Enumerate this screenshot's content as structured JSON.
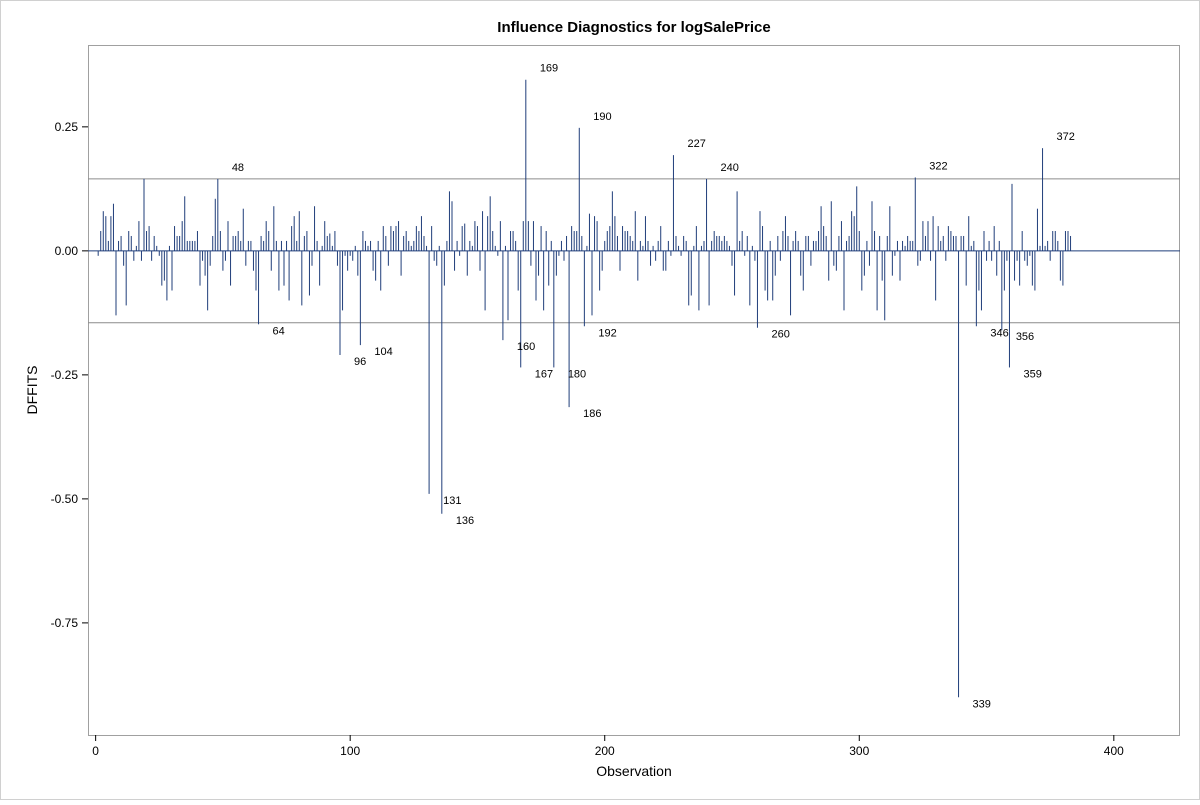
{
  "chart_data": {
    "type": "needle",
    "title": "Influence Diagnostics for logSalePrice",
    "xlabel": "Observation",
    "ylabel": "DFFITS",
    "color": "#1f3d7a",
    "xlim": [
      -3,
      426
    ],
    "ylim": [
      -0.976,
      0.415
    ],
    "xticks": [
      0,
      100,
      200,
      300,
      400
    ],
    "yticks": [
      0.25,
      {
        "value": 0,
        "label": "0.00"
      },
      -0.25,
      {
        "value": -0.5,
        "label": "-0.50"
      },
      -0.75
    ],
    "reflines": [
      0.145,
      -0.145
    ],
    "x": [
      1,
      2,
      3,
      4,
      5,
      6,
      7,
      8,
      9,
      10,
      11,
      12,
      13,
      14,
      15,
      16,
      17,
      18,
      19,
      20,
      21,
      22,
      23,
      24,
      25,
      26,
      27,
      28,
      29,
      30,
      31,
      32,
      33,
      34,
      35,
      36,
      37,
      38,
      39,
      40,
      41,
      42,
      43,
      44,
      45,
      46,
      47,
      48,
      49,
      50,
      51,
      52,
      53,
      54,
      55,
      56,
      57,
      58,
      59,
      60,
      61,
      62,
      63,
      64,
      65,
      66,
      67,
      68,
      69,
      70,
      71,
      72,
      73,
      74,
      75,
      76,
      77,
      78,
      79,
      80,
      81,
      82,
      83,
      84,
      85,
      86,
      87,
      88,
      89,
      90,
      91,
      92,
      93,
      94,
      95,
      96,
      97,
      98,
      99,
      100,
      101,
      102,
      103,
      104,
      105,
      106,
      107,
      108,
      109,
      110,
      111,
      112,
      113,
      114,
      115,
      116,
      117,
      118,
      119,
      120,
      121,
      122,
      123,
      124,
      125,
      126,
      127,
      128,
      129,
      130,
      131,
      132,
      133,
      134,
      135,
      136,
      137,
      138,
      139,
      140,
      141,
      142,
      143,
      144,
      145,
      146,
      147,
      148,
      149,
      150,
      151,
      152,
      153,
      154,
      155,
      156,
      157,
      158,
      159,
      160,
      161,
      162,
      163,
      164,
      165,
      166,
      167,
      168,
      169,
      170,
      171,
      172,
      173,
      174,
      175,
      176,
      177,
      178,
      179,
      180,
      181,
      182,
      183,
      184,
      185,
      186,
      187,
      188,
      189,
      190,
      191,
      192,
      193,
      194,
      195,
      196,
      197,
      198,
      199,
      200,
      201,
      202,
      203,
      204,
      205,
      206,
      207,
      208,
      209,
      210,
      211,
      212,
      213,
      214,
      215,
      216,
      217,
      218,
      219,
      220,
      221,
      222,
      223,
      224,
      225,
      226,
      227,
      228,
      229,
      230,
      231,
      232,
      233,
      234,
      235,
      236,
      237,
      238,
      239,
      240,
      241,
      242,
      243,
      244,
      245,
      246,
      247,
      248,
      249,
      250,
      251,
      252,
      253,
      254,
      255,
      256,
      257,
      258,
      259,
      260,
      261,
      262,
      263,
      264,
      265,
      266,
      267,
      268,
      269,
      270,
      271,
      272,
      273,
      274,
      275,
      276,
      277,
      278,
      279,
      280,
      281,
      282,
      283,
      284,
      285,
      286,
      287,
      288,
      289,
      290,
      291,
      292,
      293,
      294,
      295,
      296,
      297,
      298,
      299,
      300,
      301,
      302,
      303,
      304,
      305,
      306,
      307,
      308,
      309,
      310,
      311,
      312,
      313,
      314,
      315,
      316,
      317,
      318,
      319,
      320,
      321,
      322,
      323,
      324,
      325,
      326,
      327,
      328,
      329,
      330,
      331,
      332,
      333,
      334,
      335,
      336,
      337,
      338,
      339,
      340,
      341,
      342,
      343,
      344,
      345,
      346,
      347,
      348,
      349,
      350,
      351,
      352,
      353,
      354,
      355,
      356,
      357,
      358,
      359,
      360,
      361,
      362,
      363,
      364,
      365,
      366,
      367,
      368,
      369,
      370,
      371,
      372,
      373,
      374,
      375,
      376,
      377,
      378,
      379,
      380,
      381,
      382,
      383
    ],
    "values": [
      -0.01,
      0.04,
      0.08,
      0.07,
      0.02,
      0.07,
      0.095,
      -0.13,
      0.02,
      0.03,
      -0.03,
      -0.11,
      0.04,
      0.03,
      -0.02,
      0.01,
      0.06,
      -0.02,
      0.145,
      0.04,
      0.05,
      -0.02,
      0.03,
      0.01,
      -0.01,
      -0.07,
      -0.06,
      -0.1,
      0.01,
      -0.08,
      0.05,
      0.03,
      0.03,
      0.06,
      0.11,
      0.02,
      0.02,
      0.02,
      0.02,
      0.04,
      -0.07,
      -0.02,
      -0.05,
      -0.12,
      -0.03,
      0.03,
      0.105,
      0.145,
      0.04,
      -0.04,
      -0.02,
      0.06,
      -0.07,
      0.03,
      0.03,
      0.04,
      0.02,
      0.085,
      -0.03,
      0.02,
      0.02,
      -0.04,
      -0.08,
      -0.148,
      0.03,
      0.02,
      0.06,
      0.04,
      -0.04,
      0.09,
      0.02,
      -0.08,
      0.02,
      -0.07,
      0.02,
      -0.1,
      0.05,
      0.07,
      0.02,
      0.08,
      -0.11,
      0.03,
      0.04,
      -0.09,
      -0.03,
      0.09,
      0.02,
      -0.07,
      0.01,
      0.06,
      0.03,
      0.035,
      0.01,
      0.04,
      -0.03,
      -0.21,
      -0.12,
      -0.01,
      -0.04,
      -0.01,
      -0.02,
      0.01,
      -0.05,
      -0.19,
      0.04,
      0.02,
      0.01,
      0.02,
      -0.04,
      -0.06,
      0.02,
      -0.08,
      0.05,
      0.03,
      -0.03,
      0.05,
      0.04,
      0.05,
      0.06,
      -0.05,
      0.03,
      0.04,
      0.02,
      0.01,
      0.02,
      0.05,
      0.04,
      0.07,
      0.03,
      0.01,
      -0.49,
      0.05,
      -0.02,
      -0.03,
      0.01,
      -0.53,
      -0.07,
      0.02,
      0.12,
      0.1,
      -0.04,
      0.02,
      -0.01,
      0.05,
      0.055,
      -0.05,
      0.02,
      0.01,
      0.06,
      0.05,
      -0.04,
      0.08,
      -0.12,
      0.07,
      0.11,
      0.04,
      0.01,
      -0.01,
      0.06,
      -0.18,
      0.01,
      -0.14,
      0.04,
      0.04,
      0.02,
      -0.08,
      -0.235,
      0.06,
      0.345,
      0.06,
      -0.03,
      0.06,
      -0.1,
      -0.05,
      0.05,
      -0.12,
      0.04,
      -0.07,
      0.02,
      -0.235,
      -0.05,
      -0.01,
      0.02,
      -0.02,
      0.03,
      -0.315,
      0.05,
      0.04,
      0.04,
      0.248,
      0.03,
      -0.152,
      0.01,
      0.075,
      -0.13,
      0.07,
      0.06,
      -0.08,
      -0.04,
      0.02,
      0.04,
      0.05,
      0.12,
      0.07,
      0.03,
      -0.04,
      0.05,
      0.04,
      0.04,
      0.03,
      0.02,
      0.08,
      -0.06,
      0.02,
      0.01,
      0.07,
      0.02,
      -0.03,
      0.01,
      -0.02,
      0.02,
      0.05,
      -0.04,
      -0.04,
      0.02,
      -0.01,
      0.193,
      0.03,
      0.01,
      -0.01,
      0.03,
      0.02,
      -0.11,
      -0.09,
      0.01,
      0.05,
      -0.12,
      0.01,
      0.02,
      0.145,
      -0.11,
      0.02,
      0.04,
      0.03,
      0.03,
      0.02,
      0.03,
      0.02,
      0.01,
      -0.03,
      -0.09,
      0.12,
      0.02,
      0.04,
      -0.01,
      0.03,
      -0.11,
      0.01,
      -0.02,
      -0.155,
      0.08,
      0.05,
      -0.08,
      -0.1,
      0.02,
      -0.1,
      -0.05,
      0.03,
      -0.02,
      0.04,
      0.07,
      0.03,
      -0.13,
      0.02,
      0.04,
      0.02,
      -0.05,
      -0.08,
      0.03,
      0.03,
      -0.03,
      0.02,
      0.02,
      0.04,
      0.09,
      0.05,
      0.03,
      -0.06,
      0.1,
      -0.03,
      -0.04,
      0.03,
      0.06,
      -0.12,
      0.02,
      0.03,
      0.08,
      0.07,
      0.13,
      0.04,
      -0.08,
      -0.05,
      0.02,
      -0.03,
      0.1,
      0.04,
      -0.12,
      0.03,
      -0.06,
      -0.14,
      0.03,
      0.09,
      -0.05,
      -0.01,
      0.02,
      -0.06,
      0.02,
      0.01,
      0.03,
      0.02,
      0.02,
      0.148,
      -0.03,
      -0.02,
      0.06,
      0.03,
      0.06,
      -0.02,
      0.07,
      -0.1,
      0.05,
      0.02,
      0.03,
      -0.02,
      0.05,
      0.04,
      0.03,
      0.03,
      -0.9,
      0.03,
      0.03,
      -0.07,
      0.07,
      0.01,
      0.02,
      -0.152,
      -0.08,
      -0.12,
      0.04,
      -0.02,
      0.02,
      -0.02,
      0.05,
      -0.05,
      0.02,
      -0.16,
      -0.08,
      -0.02,
      -0.235,
      0.135,
      -0.06,
      -0.02,
      -0.07,
      0.04,
      -0.02,
      -0.03,
      -0.01,
      -0.07,
      -0.08,
      0.085,
      0.01,
      0.207,
      0.01,
      0.02,
      -0.02,
      0.04,
      0.04,
      0.02,
      -0.06,
      -0.07,
      0.04,
      0.04,
      0.03
    ],
    "annotations": [
      48,
      64,
      96,
      104,
      131,
      136,
      160,
      167,
      169,
      180,
      186,
      190,
      192,
      227,
      240,
      260,
      322,
      339,
      346,
      356,
      359,
      372
    ]
  }
}
